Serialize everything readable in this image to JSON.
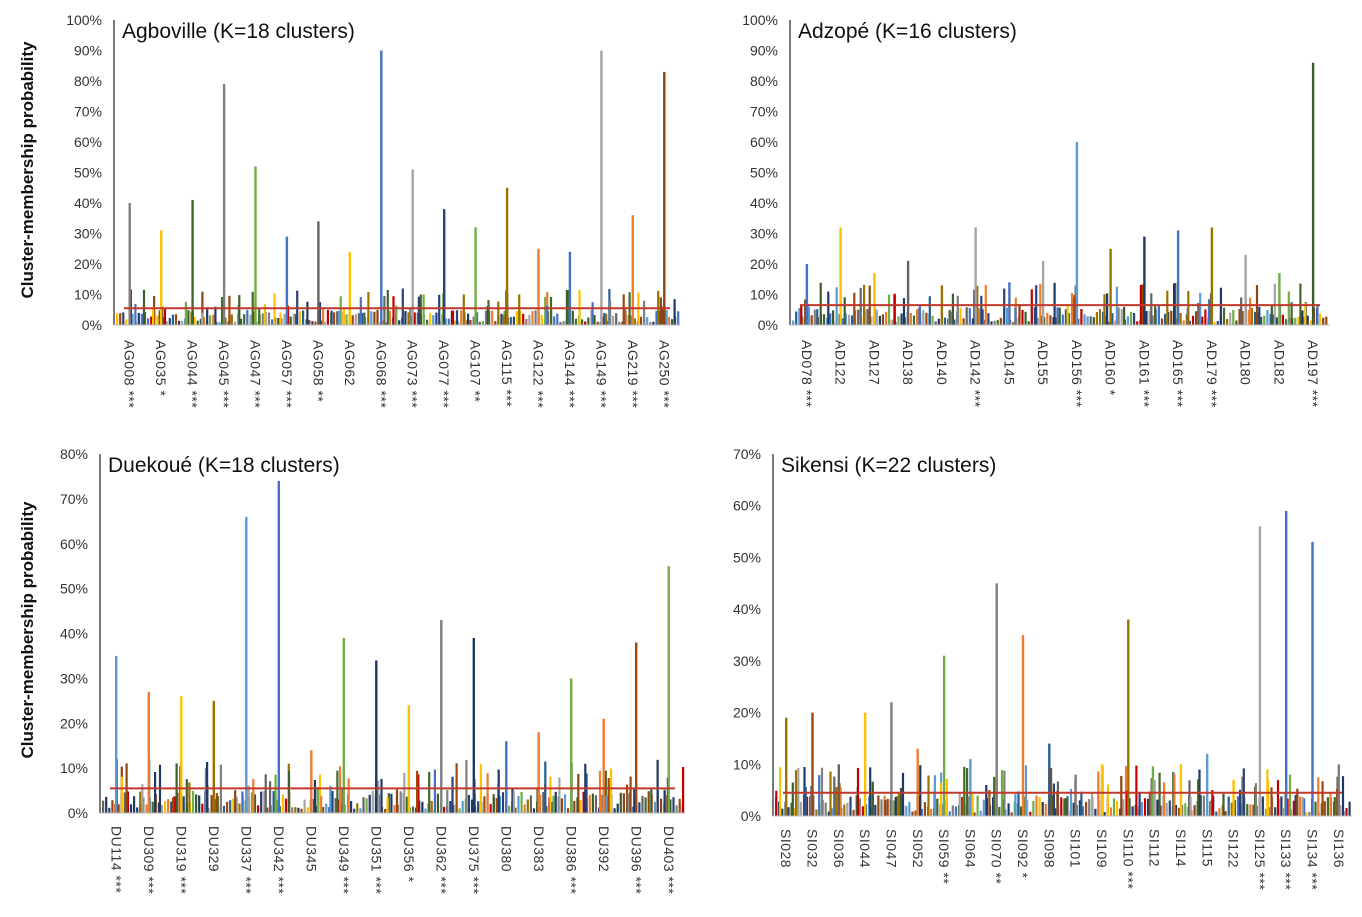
{
  "figure": {
    "ylabel_top": "Cluster-membership probability",
    "ylabel_bottom": "Cluster-membership probability"
  },
  "palette": [
    "#7f7f7f",
    "#4472c4",
    "#ed7d31",
    "#ffc000",
    "#70ad47",
    "#264478",
    "#9e480e",
    "#636363",
    "#997300",
    "#255e91",
    "#43682b",
    "#a5a5a5",
    "#1f3864",
    "#c00000",
    "#5b9bd5",
    "#203864",
    "#8b4513",
    "#3b5e2b"
  ],
  "threshold_color": "#c0392b",
  "chart_data": [
    {
      "id": "agboville",
      "type": "bar",
      "title": "Agboville (K=18 clusters)",
      "ylabel": "Cluster-membership probability",
      "ylim": [
        0,
        100
      ],
      "yticks": [
        "0%",
        "10%",
        "20%",
        "30%",
        "40%",
        "50%",
        "60%",
        "70%",
        "80%",
        "90%",
        "100%"
      ],
      "threshold": 5.5,
      "categories": [
        "AG008 ***",
        "AG035 *",
        "AG044 ***",
        "AG045 ***",
        "AG047 ***",
        "AG057 ***",
        "AG058 **",
        "AG062",
        "AG068 ***",
        "AG073 ***",
        "AG077 ***",
        "AG107 **",
        "AG115 ***",
        "AG122 ***",
        "AG144 ***",
        "AG149 ***",
        "AG219 ***",
        "AG250 ***"
      ],
      "peaks": [
        {
          "category": "AG008 ***",
          "value": 40,
          "color": "#7f7f7f"
        },
        {
          "category": "AG035 *",
          "value": 31,
          "color": "#ffc000"
        },
        {
          "category": "AG044 ***",
          "value": 41,
          "color": "#43682b"
        },
        {
          "category": "AG045 ***",
          "value": 79,
          "color": "#7f7f7f"
        },
        {
          "category": "AG047 ***",
          "value": 52,
          "color": "#70ad47"
        },
        {
          "category": "AG057 ***",
          "value": 29,
          "color": "#4472c4"
        },
        {
          "category": "AG058 **",
          "value": 34,
          "color": "#636363"
        },
        {
          "category": "AG062",
          "value": 24,
          "color": "#ffc000"
        },
        {
          "category": "AG068 ***",
          "value": 90,
          "color": "#4472c4"
        },
        {
          "category": "AG073 ***",
          "value": 51,
          "color": "#a5a5a5"
        },
        {
          "category": "AG077 ***",
          "value": 38,
          "color": "#264478"
        },
        {
          "category": "AG107 **",
          "value": 32,
          "color": "#70ad47"
        },
        {
          "category": "AG115 ***",
          "value": 45,
          "color": "#997300"
        },
        {
          "category": "AG122 ***",
          "value": 25,
          "color": "#ed7d31"
        },
        {
          "category": "AG144 ***",
          "value": 24,
          "color": "#4472c4"
        },
        {
          "category": "AG149 ***",
          "value": 90,
          "color": "#a5a5a5"
        },
        {
          "category": "AG219 ***",
          "value": 36,
          "color": "#ed7d31"
        },
        {
          "category": "AG250 ***",
          "value": 83,
          "color": "#8b4513"
        }
      ]
    },
    {
      "id": "adzope",
      "type": "bar",
      "title": "Adzopé (K=16 clusters)",
      "ylabel": "",
      "ylim": [
        0,
        100
      ],
      "yticks": [
        "0%",
        "10%",
        "20%",
        "30%",
        "40%",
        "50%",
        "60%",
        "70%",
        "80%",
        "90%",
        "100%"
      ],
      "threshold": 6.5,
      "categories": [
        "AD078 ***",
        "AD122",
        "AD127",
        "AD138",
        "AD140",
        "AD142 ***",
        "AD145",
        "AD155",
        "AD156 ***",
        "AD160 *",
        "AD161 ***",
        "AD165 ***",
        "AD179 ***",
        "AD180",
        "AD182",
        "AD197 ***"
      ],
      "peaks": [
        {
          "category": "AD078 ***",
          "value": 20,
          "color": "#4472c4"
        },
        {
          "category": "AD122",
          "value": 32,
          "color": "#ffc000"
        },
        {
          "category": "AD127",
          "value": 17,
          "color": "#ffc000"
        },
        {
          "category": "AD138",
          "value": 21,
          "color": "#636363"
        },
        {
          "category": "AD140",
          "value": 13,
          "color": "#997300"
        },
        {
          "category": "AD142 ***",
          "value": 32,
          "color": "#a5a5a5"
        },
        {
          "category": "AD145",
          "value": 14,
          "color": "#4472c4"
        },
        {
          "category": "AD155",
          "value": 21,
          "color": "#a5a5a5"
        },
        {
          "category": "AD156 ***",
          "value": 60,
          "color": "#5b9bd5"
        },
        {
          "category": "AD160 *",
          "value": 25,
          "color": "#997300"
        },
        {
          "category": "AD161 ***",
          "value": 29,
          "color": "#1f3864"
        },
        {
          "category": "AD165 ***",
          "value": 31,
          "color": "#4472c4"
        },
        {
          "category": "AD179 ***",
          "value": 32,
          "color": "#997300"
        },
        {
          "category": "AD180",
          "value": 23,
          "color": "#a5a5a5"
        },
        {
          "category": "AD182",
          "value": 17,
          "color": "#70ad47"
        },
        {
          "category": "AD197 ***",
          "value": 86,
          "color": "#3b5e2b"
        }
      ]
    },
    {
      "id": "duekoue",
      "type": "bar",
      "title": "Duekoué (K=18 clusters)",
      "ylabel": "Cluster-membership probability",
      "ylim": [
        0,
        80
      ],
      "yticks": [
        "0%",
        "10%",
        "20%",
        "30%",
        "40%",
        "50%",
        "60%",
        "70%",
        "80%"
      ],
      "threshold": 5.5,
      "categories": [
        "DU114 ***",
        "DU309 ***",
        "DU319 ***",
        "DU329",
        "DU337 ***",
        "DU342 ***",
        "DU345",
        "DU349 ***",
        "DU351 ***",
        "DU356 *",
        "DU362 ***",
        "DU375 ***",
        "DU380",
        "DU383",
        "DU386 ***",
        "DU392",
        "DU396 ***",
        "DU403 ***"
      ],
      "peaks": [
        {
          "category": "DU114 ***",
          "value": 35,
          "color": "#5b9bd5"
        },
        {
          "category": "DU309 ***",
          "value": 27,
          "color": "#ed7d31"
        },
        {
          "category": "DU319 ***",
          "value": 26,
          "color": "#ffc000"
        },
        {
          "category": "DU329",
          "value": 25,
          "color": "#997300"
        },
        {
          "category": "DU337 ***",
          "value": 66,
          "color": "#5b9bd5"
        },
        {
          "category": "DU342 ***",
          "value": 74,
          "color": "#4472c4"
        },
        {
          "category": "DU345",
          "value": 14,
          "color": "#ed7d31"
        },
        {
          "category": "DU349 ***",
          "value": 39,
          "color": "#70ad47"
        },
        {
          "category": "DU351 ***",
          "value": 34,
          "color": "#1f3864"
        },
        {
          "category": "DU356 *",
          "value": 24,
          "color": "#ffc000"
        },
        {
          "category": "DU362 ***",
          "value": 43,
          "color": "#7f7f7f"
        },
        {
          "category": "DU375 ***",
          "value": 39,
          "color": "#203864"
        },
        {
          "category": "DU380",
          "value": 16,
          "color": "#4472c4"
        },
        {
          "category": "DU383",
          "value": 18,
          "color": "#ed7d31"
        },
        {
          "category": "DU386 ***",
          "value": 30,
          "color": "#70ad47"
        },
        {
          "category": "DU392",
          "value": 21,
          "color": "#ed7d31"
        },
        {
          "category": "DU396 ***",
          "value": 38,
          "color": "#9e480e"
        },
        {
          "category": "DU403 ***",
          "value": 55,
          "color": "#70ad47"
        }
      ]
    },
    {
      "id": "sikensi",
      "type": "bar",
      "title": "Sikensi (K=22 clusters)",
      "ylabel": "",
      "ylim": [
        0,
        70
      ],
      "yticks": [
        "0%",
        "10%",
        "20%",
        "30%",
        "40%",
        "50%",
        "60%",
        "70%"
      ],
      "threshold": 4.5,
      "categories": [
        "SI028",
        "SI032",
        "SI036",
        "SI044",
        "SI047",
        "SI052",
        "SI059 **",
        "SI064",
        "SI070 **",
        "SI092 *",
        "SI098",
        "SI101",
        "SI109",
        "SI110 ***",
        "SI112",
        "SI114",
        "SI115",
        "SI122",
        "SI125 ***",
        "SI133 ***",
        "SI134 ***",
        "SI136"
      ],
      "peaks": [
        {
          "category": "SI028",
          "value": 19,
          "color": "#997300"
        },
        {
          "category": "SI032",
          "value": 20,
          "color": "#9e480e"
        },
        {
          "category": "SI036",
          "value": 10,
          "color": "#636363"
        },
        {
          "category": "SI044",
          "value": 20,
          "color": "#ffc000"
        },
        {
          "category": "SI047",
          "value": 22,
          "color": "#7f7f7f"
        },
        {
          "category": "SI052",
          "value": 13,
          "color": "#ed7d31"
        },
        {
          "category": "SI059 **",
          "value": 31,
          "color": "#70ad47"
        },
        {
          "category": "SI064",
          "value": 11,
          "color": "#5b9bd5"
        },
        {
          "category": "SI070 **",
          "value": 45,
          "color": "#7f7f7f"
        },
        {
          "category": "SI092 *",
          "value": 35,
          "color": "#ed7d31"
        },
        {
          "category": "SI098",
          "value": 14,
          "color": "#255e91"
        },
        {
          "category": "SI101",
          "value": 8,
          "color": "#7f7f7f"
        },
        {
          "category": "SI109",
          "value": 10,
          "color": "#ffc000"
        },
        {
          "category": "SI110 ***",
          "value": 38,
          "color": "#997300"
        },
        {
          "category": "SI112",
          "value": 7,
          "color": "#a5a5a5"
        },
        {
          "category": "SI114",
          "value": 10,
          "color": "#ffc000"
        },
        {
          "category": "SI115",
          "value": 12,
          "color": "#5b9bd5"
        },
        {
          "category": "SI122",
          "value": 7,
          "color": "#ffc000"
        },
        {
          "category": "SI125 ***",
          "value": 56,
          "color": "#a5a5a5"
        },
        {
          "category": "SI133 ***",
          "value": 59,
          "color": "#4472c4"
        },
        {
          "category": "SI134 ***",
          "value": 53,
          "color": "#4472c4"
        },
        {
          "category": "SI136",
          "value": 10,
          "color": "#7f7f7f"
        }
      ]
    }
  ]
}
